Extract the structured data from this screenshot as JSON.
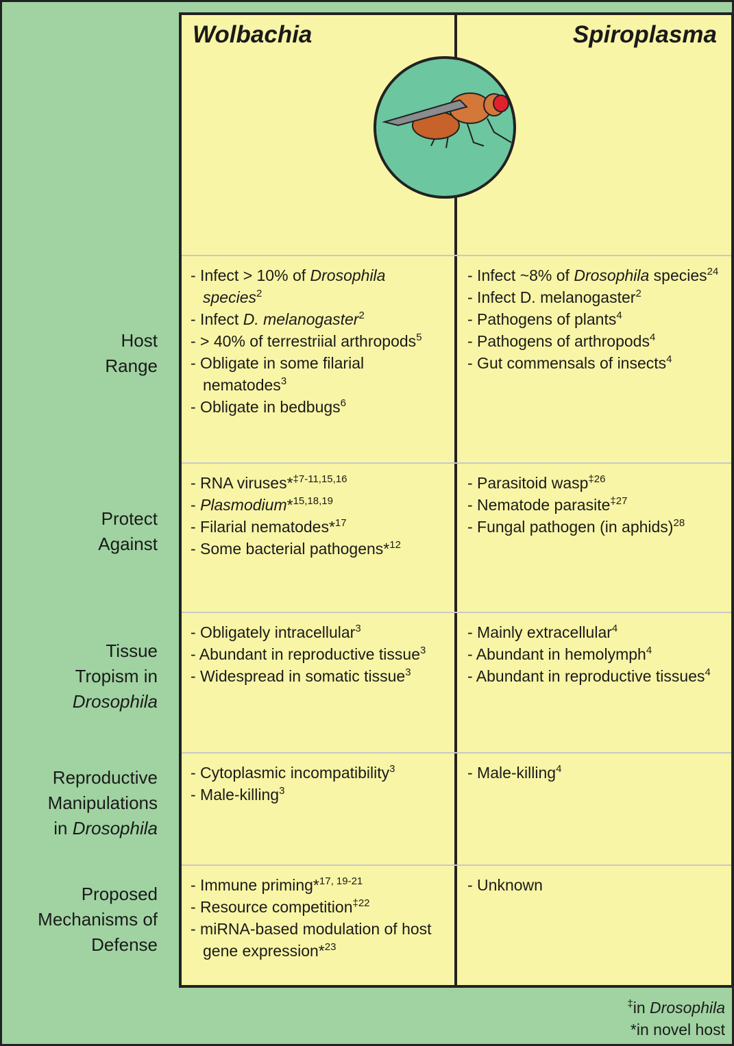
{
  "header": {
    "left": "Wolbachia",
    "right": "Spiroplasma"
  },
  "rows": [
    {
      "label": [
        "Host Range"
      ],
      "wolbachia": [
        [
          "- Infect > 10% of ",
          {
            "italic": "Drosophila species"
          },
          {
            "sup": "2"
          }
        ],
        [
          "- Infect ",
          {
            "italic": "D. melanogaster"
          },
          {
            "sup": "2"
          }
        ],
        [
          "- > 40% of terrestriial arthropods",
          {
            "sup": "5"
          }
        ],
        [
          "- Obligate in some filarial nematodes",
          {
            "sup": "3"
          }
        ],
        [
          "- Obligate in bedbugs",
          {
            "sup": "6"
          }
        ]
      ],
      "spiroplasma": [
        [
          "- Infect ~8% of ",
          {
            "italic": "Drosophila"
          },
          " species",
          {
            "sup": "24"
          }
        ],
        [
          "- Infect D. melanogaster",
          {
            "sup": "2"
          }
        ],
        [
          "- Pathogens of plants",
          {
            "sup": "4"
          }
        ],
        [
          "- Pathogens of arthropods",
          {
            "sup": "4"
          }
        ],
        [
          "- Gut commensals of insects",
          {
            "sup": "4"
          }
        ]
      ]
    },
    {
      "label": [
        "Protect Against"
      ],
      "wolbachia": [
        [
          "- RNA viruses*",
          {
            "sup": "‡7-11,15,16"
          }
        ],
        [
          "- ",
          {
            "italic": "Plasmodium"
          },
          "*",
          {
            "sup": "15,18,19"
          }
        ],
        [
          "- Filarial nematodes*",
          {
            "sup": "17"
          }
        ],
        [
          "- Some bacterial pathogens*",
          {
            "sup": "12"
          }
        ]
      ],
      "spiroplasma": [
        [
          "- Parasitoid wasp",
          {
            "sup": "‡26"
          }
        ],
        [
          "- Nematode parasite",
          {
            "sup": "‡27"
          }
        ],
        [
          "- Fungal pathogen (in aphids)",
          {
            "sup": "28"
          }
        ]
      ]
    },
    {
      "label": [
        "Tissue Tropism in ",
        {
          "italic": "Drosophila"
        }
      ],
      "wolbachia": [
        [
          "- Obligately intracellular",
          {
            "sup": "3"
          }
        ],
        [
          "- Abundant in reproductive tissue",
          {
            "sup": "3"
          }
        ],
        [
          "- Widespread in somatic tissue",
          {
            "sup": "3"
          }
        ]
      ],
      "spiroplasma": [
        [
          "- Mainly extracellular",
          {
            "sup": "4"
          }
        ],
        [
          "- Abundant in hemolymph",
          {
            "sup": "4"
          }
        ],
        [
          "- Abundant in reproductive tissues",
          {
            "sup": "4"
          }
        ]
      ]
    },
    {
      "label": [
        "Reproductive Manipulations in ",
        {
          "italic": "Drosophila"
        }
      ],
      "wolbachia": [
        [
          "- Cytoplasmic incompatibility",
          {
            "sup": "3"
          }
        ],
        [
          "- Male-killing",
          {
            "sup": "3"
          }
        ]
      ],
      "spiroplasma": [
        [
          "- Male-killing",
          {
            "sup": "4"
          }
        ]
      ]
    },
    {
      "label": [
        "Proposed Mechanisms of Defense"
      ],
      "wolbachia": [
        [
          "- Immune priming*",
          {
            "sup": "17, 19-21"
          }
        ],
        [
          "- Resource competition",
          {
            "sup": "‡22"
          }
        ],
        [
          "- miRNA-based modulation of host gene expression*",
          {
            "sup": "23"
          }
        ]
      ],
      "spiroplasma": [
        [
          "- Unknown"
        ]
      ]
    }
  ],
  "footnotes": [
    [
      {
        "sup": "‡"
      },
      "in ",
      {
        "italic": "Drosophila"
      }
    ],
    [
      "*in novel host"
    ]
  ]
}
